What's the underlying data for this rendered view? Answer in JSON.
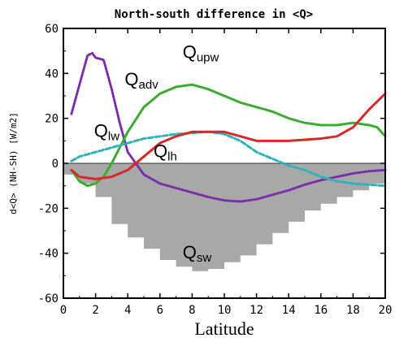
{
  "chart_data": {
    "type": "line",
    "title": "North-south difference in <Q>",
    "xlabel": "Latitude",
    "ylabel": "d<Q> (NH-SH) [W/m2]",
    "xlim": [
      0,
      20
    ],
    "ylim": [
      -60,
      60
    ],
    "xticks": [
      0,
      2,
      4,
      6,
      8,
      10,
      12,
      14,
      16,
      18,
      20
    ],
    "yticks": [
      -60,
      -40,
      -20,
      0,
      20,
      40,
      60
    ],
    "grid": false,
    "legend": "none",
    "series": [
      {
        "name": "Qupw",
        "label_main": "Q",
        "label_sub": "upw",
        "color": "#7a2fa8",
        "style": "dotted",
        "x": [
          0.5,
          1.0,
          1.5,
          1.8,
          2.0,
          2.5,
          3.0,
          3.5,
          4.0,
          5.0,
          6.0,
          7.0,
          8.0,
          9.0,
          10.0,
          11.0,
          12.0,
          13.0,
          14.0,
          15.0,
          16.0,
          17.0,
          18.0,
          19.0,
          20.0
        ],
        "y": [
          22,
          35,
          48,
          49,
          47,
          46,
          33,
          18,
          5,
          -5,
          -9,
          -11,
          -13,
          -15,
          -16.5,
          -17,
          -16,
          -14,
          -12,
          -9.5,
          -7.5,
          -6,
          -4.5,
          -3.5,
          -3
        ]
      },
      {
        "name": "Qadv",
        "label_main": "Q",
        "label_sub": "adv",
        "color": "#3cab32",
        "style": "solid",
        "x": [
          0.5,
          1.0,
          1.5,
          2.0,
          2.5,
          3.0,
          4.0,
          5.0,
          6.0,
          7.0,
          8.0,
          9.0,
          10.0,
          11.0,
          12.0,
          13.0,
          14.0,
          15.0,
          16.0,
          17.0,
          18.0,
          19.0,
          19.5,
          20.0
        ],
        "y": [
          -3,
          -8,
          -10,
          -9,
          -6,
          0,
          14,
          25,
          31,
          34,
          35,
          33,
          30,
          27,
          25,
          23,
          20,
          18,
          17,
          17,
          18,
          17,
          16,
          12
        ]
      },
      {
        "name": "Qlw",
        "label_main": "Q",
        "label_sub": "lw",
        "color": "#2fb3b8",
        "style": "dashed",
        "x": [
          0.5,
          1.0,
          2.0,
          3.0,
          4.0,
          5.0,
          6.0,
          7.0,
          8.0,
          9.0,
          10.0,
          11.0,
          12.0,
          13.0,
          14.0,
          15.0,
          16.0,
          17.0,
          18.0,
          19.0,
          20.0
        ],
        "y": [
          1,
          3,
          5,
          7,
          9,
          11,
          12,
          13,
          13.5,
          14,
          13,
          10,
          5,
          2,
          -1,
          -3,
          -6,
          -8,
          -9,
          -9.5,
          -10
        ]
      },
      {
        "name": "Qlh",
        "label_main": "Q",
        "label_sub": "lh",
        "color": "#d62a2a",
        "style": "solid",
        "x": [
          0.5,
          1.0,
          2.0,
          3.0,
          4.0,
          5.0,
          6.0,
          7.0,
          8.0,
          9.0,
          10.0,
          11.0,
          12.0,
          13.0,
          14.0,
          15.0,
          16.0,
          17.0,
          18.0,
          19.0,
          20.0
        ],
        "y": [
          -3,
          -6,
          -7,
          -6,
          -3,
          3,
          9,
          12,
          14,
          14,
          14,
          12,
          10,
          10,
          10,
          10.5,
          11,
          12,
          16,
          24,
          31
        ]
      }
    ],
    "area_series": {
      "name": "Qsw",
      "label_main": "Q",
      "label_sub": "sw",
      "color": "#a8a8a8",
      "type": "step",
      "x": [
        0,
        1,
        2,
        3,
        4,
        5,
        6,
        7,
        8,
        9,
        10,
        11,
        12,
        13,
        14,
        15,
        16,
        17,
        18,
        19,
        20
      ],
      "y": [
        -5,
        -9,
        -15,
        -27,
        -33,
        -38,
        -43,
        -46,
        -48,
        -47,
        -44,
        -41,
        -36,
        -31,
        -26,
        -21,
        -18,
        -15,
        -12,
        -9,
        -7
      ]
    }
  }
}
